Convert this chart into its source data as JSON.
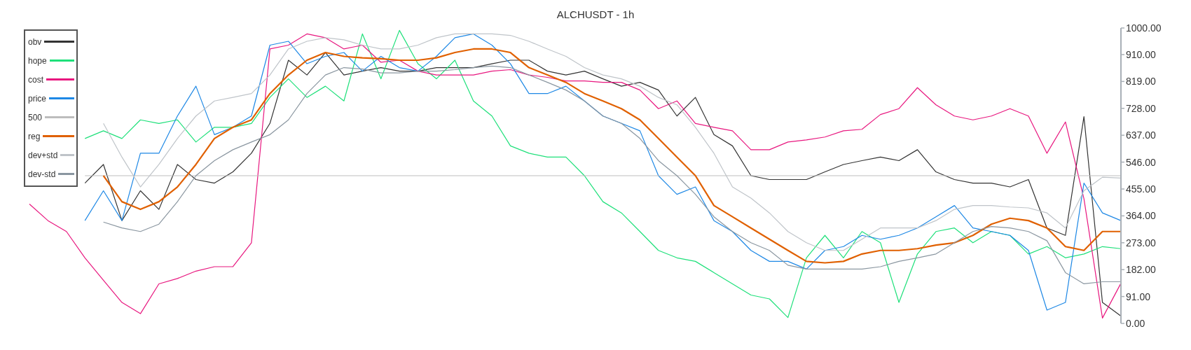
{
  "chart_data": {
    "type": "line",
    "title": "ALCHUSDT - 1h",
    "categories": [
      null,
      null,
      null,
      null,
      null,
      null,
      null,
      null,
      null,
      null,
      null,
      null,
      null,
      null,
      null,
      null,
      null,
      null,
      null,
      null,
      null,
      null,
      null,
      null,
      null,
      null,
      null,
      null,
      null,
      null,
      null,
      null,
      null,
      null,
      null,
      null,
      null,
      null,
      null,
      null,
      null,
      null,
      null,
      null,
      null,
      null,
      null,
      null,
      null,
      null,
      null,
      null,
      null,
      null,
      null,
      null,
      null,
      null,
      null,
      null
    ],
    "ylim": [
      0,
      1000
    ],
    "yticks": [
      {
        "value": 0,
        "label": "0.00"
      },
      {
        "value": 91,
        "label": "91.00"
      },
      {
        "value": 182,
        "label": "182.00"
      },
      {
        "value": 273,
        "label": "273.00"
      },
      {
        "value": 364,
        "label": "364.00"
      },
      {
        "value": 455,
        "label": "455.00"
      },
      {
        "value": 546,
        "label": "546.00"
      },
      {
        "value": 637,
        "label": "637.00"
      },
      {
        "value": 728,
        "label": "728.00"
      },
      {
        "value": 819,
        "label": "819.00"
      },
      {
        "value": 910,
        "label": "910.00"
      },
      {
        "value": 1000,
        "label": "1000.00"
      }
    ],
    "tick_labels": "y",
    "legend": "top left",
    "marker": "none",
    "series": [
      {
        "name": "obv",
        "color": "#333333",
        "values": [
          null,
          null,
          null,
          475,
          538,
          348,
          449,
          386,
          538,
          487,
          475,
          513,
          576,
          677,
          891,
          841,
          917,
          841,
          854,
          866,
          854,
          854,
          866,
          866,
          866,
          879,
          891,
          891,
          854,
          841,
          854,
          828,
          803,
          816,
          790,
          702,
          765,
          639,
          601,
          500,
          487,
          487,
          487,
          513,
          538,
          551,
          563,
          551,
          588,
          513,
          487,
          475,
          475,
          462,
          487,
          323,
          298,
          700,
          71,
          25
        ]
      },
      {
        "name": "hope",
        "color": "#1ee07a",
        "values": [
          null,
          null,
          null,
          626,
          652,
          626,
          689,
          677,
          689,
          614,
          664,
          664,
          677,
          765,
          828,
          765,
          803,
          753,
          980,
          828,
          992,
          879,
          828,
          891,
          753,
          702,
          601,
          576,
          563,
          563,
          500,
          412,
          374,
          311,
          247,
          222,
          210,
          172,
          134,
          96,
          83,
          20,
          222,
          298,
          222,
          311,
          273,
          71,
          235,
          311,
          323,
          273,
          311,
          298,
          235,
          260,
          222,
          235,
          260,
          253
        ]
      },
      {
        "name": "cost",
        "color": "#e8177f",
        "values": [
          404,
          348,
          311,
          222,
          146,
          71,
          33,
          134,
          152,
          177,
          192,
          192,
          273,
          929,
          942,
          980,
          967,
          929,
          942,
          884,
          891,
          854,
          841,
          841,
          841,
          854,
          859,
          841,
          833,
          821,
          821,
          816,
          816,
          790,
          727,
          753,
          677,
          664,
          652,
          588,
          588,
          614,
          621,
          631,
          652,
          657,
          707,
          727,
          798,
          740,
          702,
          689,
          702,
          727,
          702,
          576,
          682,
          422,
          18,
          136
        ]
      },
      {
        "name": "price",
        "color": "#1e88e5",
        "values": [
          null,
          null,
          null,
          348,
          449,
          348,
          576,
          576,
          702,
          803,
          639,
          664,
          702,
          942,
          955,
          879,
          904,
          917,
          854,
          904,
          866,
          854,
          904,
          967,
          980,
          942,
          879,
          778,
          778,
          803,
          753,
          702,
          677,
          652,
          500,
          437,
          462,
          348,
          311,
          247,
          210,
          210,
          184,
          247,
          260,
          298,
          285,
          298,
          323,
          361,
          399,
          323,
          311,
          298,
          247,
          45,
          71,
          475,
          374,
          348
        ]
      },
      {
        "name": "500",
        "color": "#bdbdbd",
        "values": [
          null,
          null,
          null,
          500,
          500,
          500,
          500,
          500,
          500,
          500,
          500,
          500,
          500,
          500,
          500,
          500,
          500,
          500,
          500,
          500,
          500,
          500,
          500,
          500,
          500,
          500,
          500,
          500,
          500,
          500,
          500,
          500,
          500,
          500,
          500,
          500,
          500,
          500,
          500,
          500,
          500,
          500,
          500,
          500,
          500,
          500,
          500,
          500,
          500,
          500,
          500,
          500,
          500,
          500,
          500,
          500,
          500,
          500,
          500,
          500
        ]
      },
      {
        "name": "reg",
        "color": "#e06000",
        "values": [
          null,
          null,
          null,
          null,
          500,
          412,
          386,
          412,
          462,
          538,
          626,
          664,
          689,
          778,
          841,
          891,
          917,
          904,
          899,
          896,
          891,
          891,
          899,
          917,
          929,
          929,
          917,
          866,
          841,
          816,
          778,
          753,
          727,
          689,
          626,
          563,
          500,
          399,
          361,
          323,
          285,
          247,
          210,
          205,
          210,
          235,
          247,
          247,
          253,
          265,
          273,
          298,
          336,
          356,
          348,
          323,
          260,
          247,
          311,
          311
        ]
      },
      {
        "name": "dev+std",
        "color": "#bfc4c9",
        "values": [
          null,
          null,
          null,
          null,
          677,
          563,
          462,
          538,
          626,
          702,
          753,
          765,
          778,
          841,
          929,
          955,
          967,
          960,
          942,
          929,
          929,
          942,
          967,
          980,
          980,
          980,
          975,
          955,
          929,
          904,
          866,
          841,
          828,
          803,
          765,
          740,
          664,
          576,
          462,
          424,
          374,
          311,
          273,
          247,
          247,
          285,
          323,
          323,
          323,
          348,
          386,
          399,
          399,
          394,
          391,
          374,
          323,
          449,
          495,
          492
        ]
      },
      {
        "name": "dev-std",
        "color": "#8a96a0",
        "values": [
          null,
          null,
          null,
          null,
          343,
          323,
          311,
          336,
          412,
          500,
          551,
          588,
          614,
          639,
          689,
          778,
          841,
          866,
          861,
          848,
          848,
          854,
          854,
          859,
          866,
          871,
          866,
          841,
          816,
          790,
          753,
          702,
          677,
          626,
          551,
          500,
          437,
          361,
          311,
          273,
          247,
          197,
          184,
          184,
          184,
          184,
          192,
          210,
          222,
          235,
          273,
          311,
          328,
          323,
          311,
          280,
          172,
          134,
          141,
          141
        ]
      }
    ]
  }
}
